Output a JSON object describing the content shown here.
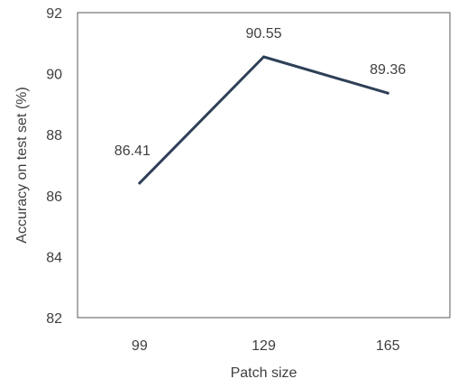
{
  "chart_data": {
    "type": "line",
    "title": "",
    "xlabel": "Patch size",
    "ylabel": "Accuracy on test set (%)",
    "categories": [
      "99",
      "129",
      "165"
    ],
    "series": [
      {
        "values": [
          86.41,
          90.55,
          89.36
        ],
        "color": "#2e4057"
      }
    ],
    "data_labels": [
      "86.41",
      "90.55",
      "89.36"
    ],
    "ylim": [
      82,
      92
    ],
    "yticks": [
      "82",
      "84",
      "86",
      "88",
      "90",
      "92"
    ],
    "grid": false,
    "legend": "none"
  }
}
